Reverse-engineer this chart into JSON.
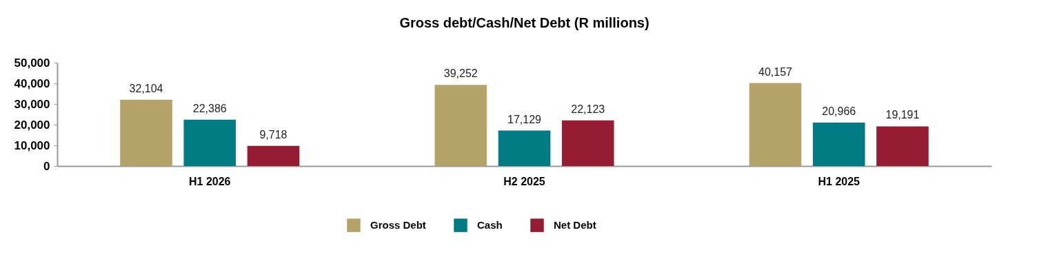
{
  "chart_data": {
    "type": "bar",
    "title": "Gross debt/Cash/Net Debt (R millions)",
    "categories": [
      "H1 2026",
      "H2 2025",
      "H1 2025"
    ],
    "series": [
      {
        "name": "Gross Debt",
        "color": "#b5a36a",
        "values": [
          32104,
          39252,
          40157
        ],
        "value_labels": [
          "32,104",
          "39,252",
          "40,157"
        ]
      },
      {
        "name": "Cash",
        "color": "#007b84",
        "values": [
          22386,
          17129,
          20966
        ],
        "value_labels": [
          "22,386",
          "17,129",
          "20,966"
        ]
      },
      {
        "name": "Net Debt",
        "color": "#951c33",
        "values": [
          9718,
          22123,
          19191
        ],
        "value_labels": [
          "9,718",
          "22,123",
          "19,191"
        ]
      }
    ],
    "ylim": [
      0,
      50000
    ],
    "yticks": [
      0,
      {
        "value": 10000,
        "label": "10,000"
      },
      {
        "value": 20000,
        "label": "20,000"
      },
      {
        "value": 30000,
        "label": "30,000"
      },
      {
        "value": 40000,
        "label": "40,000"
      },
      {
        "value": 50000,
        "label": "50,000"
      }
    ],
    "grid": false,
    "legend": "bottom"
  }
}
